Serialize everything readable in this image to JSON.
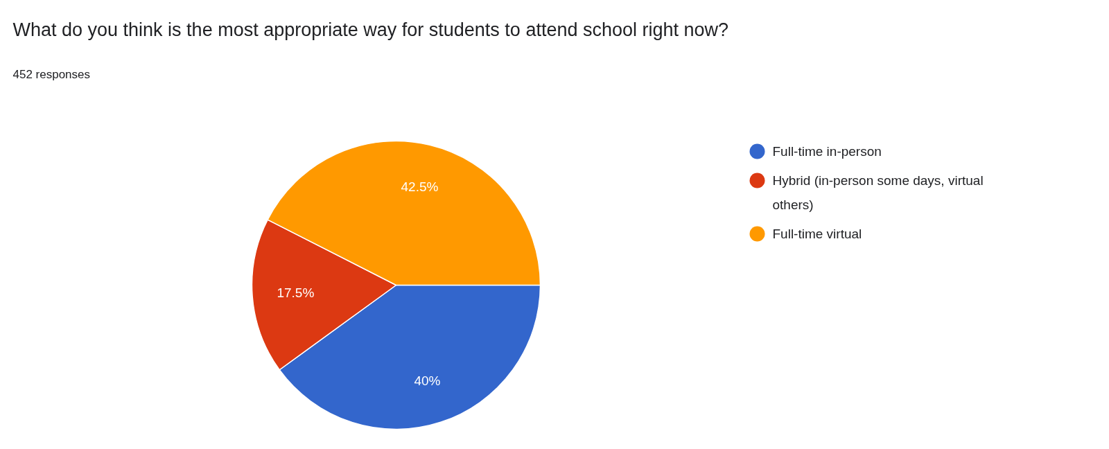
{
  "chart_data": {
    "type": "pie",
    "title": "What do you think is the most appropriate way for students to attend school right now?",
    "subtitle": "452 responses",
    "categories": [
      "Full-time in-person",
      "Hybrid (in-person some days, virtual others)",
      "Full-time virtual"
    ],
    "values": [
      40,
      17.5,
      42.5
    ],
    "colors": [
      "#3366cc",
      "#dc3912",
      "#ff9900"
    ],
    "value_labels": [
      "40%",
      "17.5%",
      "42.5%"
    ],
    "legend": "right"
  }
}
